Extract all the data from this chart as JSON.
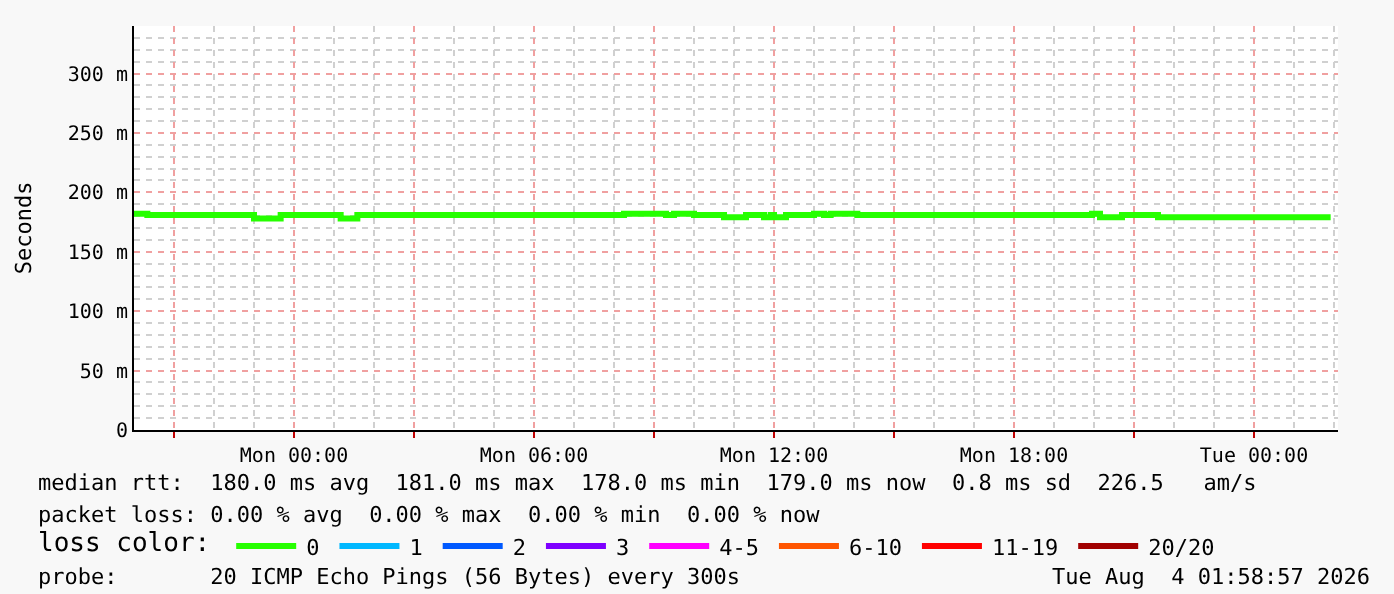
{
  "chart_data": {
    "type": "step",
    "ylabel": "Seconds",
    "legend_title": "loss color:",
    "legend": "bottom",
    "grid": true,
    "marker": "none",
    "line_style": "solid",
    "x": [
      "2026-08-02T20:00",
      "2026-08-02T20:20",
      "2026-08-02T23:00",
      "2026-08-02T23:40",
      "2026-08-03T01:10",
      "2026-08-03T01:35",
      "2026-08-03T08:15",
      "2026-08-03T09:18",
      "2026-08-03T09:30",
      "2026-08-03T10:00",
      "2026-08-03T10:45",
      "2026-08-03T11:18",
      "2026-08-03T11:45",
      "2026-08-03T11:55",
      "2026-08-03T12:00",
      "2026-08-03T12:18",
      "2026-08-03T13:00",
      "2026-08-03T13:15",
      "2026-08-03T13:25",
      "2026-08-03T14:05",
      "2026-08-03T19:57",
      "2026-08-03T20:09",
      "2026-08-03T20:42",
      "2026-08-03T21:36",
      "2026-08-04T01:55"
    ],
    "series": [
      {
        "name": "0",
        "color": "#26ff00",
        "values": [
          182,
          181,
          178,
          181,
          178,
          181,
          182,
          181,
          182,
          181,
          179,
          181,
          179,
          181,
          179,
          181,
          182,
          181,
          182,
          181,
          182,
          179,
          181,
          179,
          179
        ]
      },
      {
        "name": "1",
        "color": "#00b8ff",
        "values": [
          null,
          null,
          null,
          null,
          null,
          null,
          null,
          null,
          null,
          null,
          null,
          null,
          null,
          null,
          null,
          null,
          null,
          null,
          null,
          null,
          null,
          null,
          null,
          null,
          null
        ]
      },
      {
        "name": "2",
        "color": "#0059ff",
        "values": [
          null,
          null,
          null,
          null,
          null,
          null,
          null,
          null,
          null,
          null,
          null,
          null,
          null,
          null,
          null,
          null,
          null,
          null,
          null,
          null,
          null,
          null,
          null,
          null,
          null
        ]
      },
      {
        "name": "3",
        "color": "#7e00ff",
        "values": [
          null,
          null,
          null,
          null,
          null,
          null,
          null,
          null,
          null,
          null,
          null,
          null,
          null,
          null,
          null,
          null,
          null,
          null,
          null,
          null,
          null,
          null,
          null,
          null,
          null
        ]
      },
      {
        "name": "4-5",
        "color": "#ff00ff",
        "values": [
          null,
          null,
          null,
          null,
          null,
          null,
          null,
          null,
          null,
          null,
          null,
          null,
          null,
          null,
          null,
          null,
          null,
          null,
          null,
          null,
          null,
          null,
          null,
          null,
          null
        ]
      },
      {
        "name": "6-10",
        "color": "#ff5500",
        "values": [
          null,
          null,
          null,
          null,
          null,
          null,
          null,
          null,
          null,
          null,
          null,
          null,
          null,
          null,
          null,
          null,
          null,
          null,
          null,
          null,
          null,
          null,
          null,
          null,
          null
        ]
      },
      {
        "name": "11-19",
        "color": "#ff0000",
        "values": [
          null,
          null,
          null,
          null,
          null,
          null,
          null,
          null,
          null,
          null,
          null,
          null,
          null,
          null,
          null,
          null,
          null,
          null,
          null,
          null,
          null,
          null,
          null,
          null,
          null
        ]
      },
      {
        "name": "20/20",
        "color": "#a10000",
        "values": [
          null,
          null,
          null,
          null,
          null,
          null,
          null,
          null,
          null,
          null,
          null,
          null,
          null,
          null,
          null,
          null,
          null,
          null,
          null,
          null,
          null,
          null,
          null,
          null,
          null
        ]
      }
    ],
    "xlim": [
      "2026-08-02T20:00",
      "2026-08-04T02:06"
    ],
    "xticks": [
      {
        "value": "2026-08-02T21:00",
        "label": null
      },
      {
        "value": "2026-08-03T00:00",
        "label": "Mon 00:00"
      },
      {
        "value": "2026-08-03T03:00",
        "label": null
      },
      {
        "value": "2026-08-03T06:00",
        "label": "Mon 06:00"
      },
      {
        "value": "2026-08-03T09:00",
        "label": null
      },
      {
        "value": "2026-08-03T12:00",
        "label": "Mon 12:00"
      },
      {
        "value": "2026-08-03T15:00",
        "label": null
      },
      {
        "value": "2026-08-03T18:00",
        "label": "Mon 18:00"
      },
      {
        "value": "2026-08-03T21:00",
        "label": null
      },
      {
        "value": "2026-08-04T00:00",
        "label": "Tue 00:00"
      }
    ],
    "ylim": [
      0,
      340
    ],
    "yticks": [
      0,
      {
        "value": 50,
        "label": "50 m"
      },
      {
        "value": 100,
        "label": "100 m"
      },
      {
        "value": 150,
        "label": "150 m"
      },
      {
        "value": 200,
        "label": "200 m"
      },
      {
        "value": 250,
        "label": "250 m"
      },
      {
        "value": 300,
        "label": "300 m"
      }
    ],
    "annotations": [
      "median rtt:  180.0 ms avg  181.0 ms max  178.0 ms min  179.0 ms now  0.8 ms sd  226.5   am/s",
      "packet loss: 0.00 % avg  0.00 % max  0.00 % min  0.00 % now",
      "probe:       20 ICMP Echo Pings (56 Bytes) every 300s",
      "Tue Aug  4 01:58:57 2026"
    ]
  }
}
